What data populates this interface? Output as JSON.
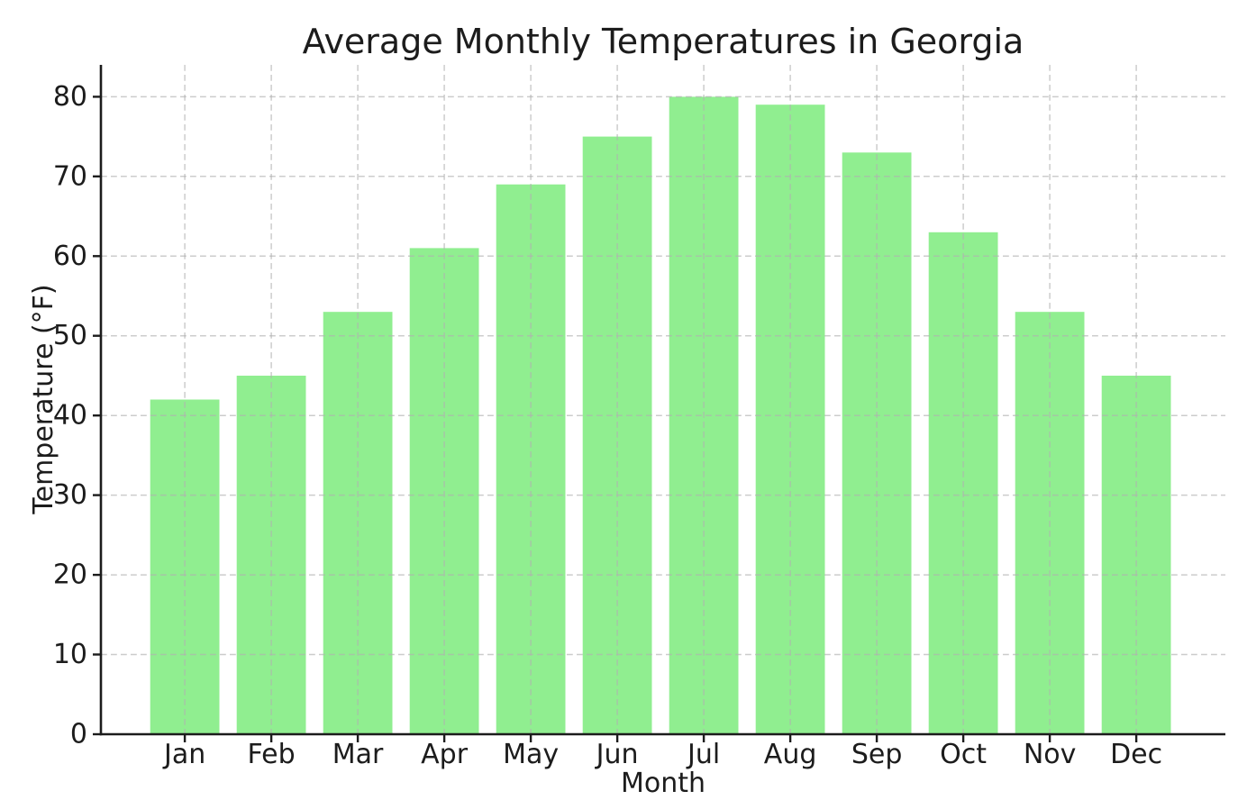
{
  "figure": {
    "background": "#ffffff"
  },
  "chart_data": {
    "type": "bar",
    "title": "Average Monthly Temperatures in Georgia",
    "xlabel": "Month",
    "ylabel": "Temperature (°F)",
    "categories": [
      "Jan",
      "Feb",
      "Mar",
      "Apr",
      "May",
      "Jun",
      "Jul",
      "Aug",
      "Sep",
      "Oct",
      "Nov",
      "Dec"
    ],
    "values": [
      42,
      45,
      53,
      61,
      69,
      75,
      80,
      79,
      73,
      63,
      53,
      45
    ],
    "ylim": [
      0,
      84
    ],
    "yticks": [
      0,
      10,
      20,
      30,
      40,
      50,
      60,
      70,
      80
    ],
    "grid": true,
    "grid_style": "dashed",
    "legend_position": "none",
    "bar_color": "#90EE90",
    "grid_color": "#b0b0b0",
    "axis_color": "#1c1c1c",
    "text_color": "#1c1c1c"
  }
}
